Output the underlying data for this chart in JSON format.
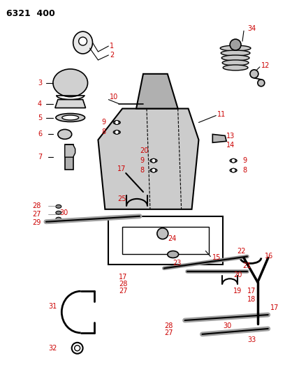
{
  "title": "6321 400",
  "bg_color": "#ffffff",
  "line_color": "#000000",
  "label_color": "#cc0000",
  "fig_width": 4.08,
  "fig_height": 5.33,
  "dpi": 100
}
